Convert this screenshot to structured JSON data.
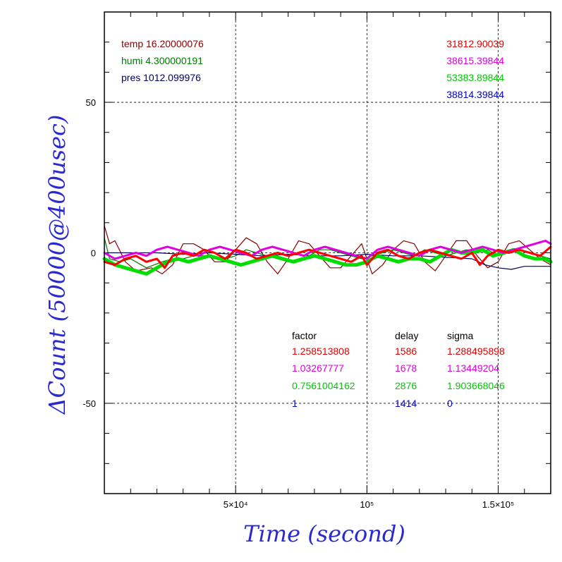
{
  "chart_data": {
    "type": "line",
    "xlabel": "Time (second)",
    "ylabel": "ΔCount (50000@400usec)",
    "xlim": [
      0,
      170000
    ],
    "ylim": [
      -80,
      80
    ],
    "x_ticks": [
      {
        "value": 50000,
        "label": "5×10⁴"
      },
      {
        "value": 100000,
        "label": "10⁵"
      },
      {
        "value": 150000,
        "label": "1.5×10⁵"
      }
    ],
    "y_ticks": [
      {
        "value": 50,
        "label": "50"
      },
      {
        "value": 0,
        "label": "0"
      },
      {
        "value": -50,
        "label": "-50"
      }
    ],
    "grid": true,
    "env": [
      {
        "label": "temp 16.20000076",
        "color": "#8b0000"
      },
      {
        "label": "humi 4.300000191",
        "color": "#007a00"
      },
      {
        "label": "pres 1012.099976",
        "color": "#00005a"
      }
    ],
    "counts": [
      {
        "value": "31812.90039",
        "color": "#e00000"
      },
      {
        "value": "38615.39844",
        "color": "#e000e0"
      },
      {
        "value": "53383.89844",
        "color": "#00c800"
      },
      {
        "value": "38814.39844",
        "color": "#0000c8"
      }
    ],
    "table": {
      "headers": [
        "factor",
        "delay",
        "sigma"
      ],
      "rows": [
        {
          "factor": "1.258513808",
          "delay": "1586",
          "sigma": "1.288495898",
          "color": "#e00000"
        },
        {
          "factor": "1.03267777",
          "delay": "1678",
          "sigma": "1.13449204",
          "color": "#e000e0"
        },
        {
          "factor": "0.7561004162",
          "delay": "2876",
          "sigma": "1.903668046",
          "color": "#00c800"
        },
        {
          "factor": "1",
          "delay": "1414",
          "sigma": "0",
          "color": "#0000c8"
        }
      ]
    },
    "series": [
      {
        "color": "#8b0000",
        "width": 1.2,
        "x": [
          0,
          2000,
          4000,
          8000,
          12000,
          18000,
          22000,
          26000,
          30000,
          34000,
          38000,
          42000,
          46000,
          50000,
          54000,
          58000,
          62000,
          66000,
          70000,
          74000,
          78000,
          82000,
          86000,
          90000,
          94000,
          98000,
          102000,
          106000,
          110000,
          114000,
          118000,
          122000,
          126000,
          130000,
          134000,
          138000,
          142000,
          146000,
          150000,
          154000,
          158000,
          162000,
          166000,
          170000
        ],
        "y": [
          9,
          3,
          4,
          -3,
          -6,
          -5,
          -7,
          -4,
          3,
          3,
          1,
          -3,
          -3,
          1,
          5,
          3,
          -3,
          -7,
          -2,
          4,
          3,
          -1,
          -5,
          -5,
          -1,
          3,
          -7,
          -4,
          1,
          4,
          3,
          -3,
          -6,
          -1,
          4,
          4,
          -1,
          -5,
          -3,
          3,
          4,
          1,
          -2,
          -4
        ]
      },
      {
        "color": "#007a00",
        "width": 1.2,
        "x": [
          0,
          2000,
          6000,
          10000,
          16000,
          22000,
          26000,
          30000,
          34000,
          38000,
          42000,
          46000,
          50000,
          54000,
          58000,
          62000,
          66000,
          70000,
          74000,
          78000,
          82000,
          86000,
          90000,
          94000,
          98000,
          102000,
          106000,
          110000,
          114000,
          118000,
          122000,
          126000,
          130000,
          134000,
          138000,
          142000,
          146000,
          150000,
          154000,
          158000,
          162000,
          166000,
          170000
        ],
        "y": [
          5,
          -2,
          -3,
          -2,
          -5,
          -3,
          -2,
          -2,
          -1,
          -1,
          -2,
          -2,
          -1,
          1,
          0,
          -1,
          -2,
          -3,
          -2,
          -1,
          1,
          1,
          0,
          -1,
          -2,
          -1,
          0,
          1,
          0,
          -1,
          1,
          0,
          -1,
          0,
          1,
          0,
          1,
          -1,
          0,
          1,
          0,
          -1,
          -2
        ]
      },
      {
        "color": "#00005a",
        "width": 1.2,
        "x": [
          0,
          10000,
          20000,
          30000,
          40000,
          50000,
          60000,
          70000,
          80000,
          90000,
          100000,
          110000,
          120000,
          130000,
          140000,
          145000,
          150000,
          155000,
          160000,
          165000,
          170000
        ],
        "y": [
          0,
          0,
          0,
          -0.5,
          0,
          -0.5,
          -1,
          -0.5,
          -1,
          -1,
          -0.5,
          -1,
          -1,
          -1.5,
          -2,
          -4,
          -5,
          -5.5,
          -4.5,
          -4.5,
          -4.5
        ]
      },
      {
        "color": "#00dd00",
        "width": 5,
        "x": [
          0,
          4000,
          8000,
          12000,
          16000,
          20000,
          24000,
          28000,
          32000,
          36000,
          40000,
          44000,
          48000,
          52000,
          56000,
          60000,
          64000,
          68000,
          72000,
          76000,
          80000,
          84000,
          88000,
          92000,
          96000,
          100000,
          104000,
          108000,
          112000,
          116000,
          120000,
          124000,
          128000,
          132000,
          136000,
          140000,
          144000,
          148000,
          152000,
          156000,
          160000,
          164000,
          168000,
          170000
        ],
        "y": [
          -2,
          -4,
          -5,
          -6,
          -7,
          -5,
          -3,
          -2,
          -3,
          -2,
          -1,
          -2,
          -3,
          -4,
          -3,
          -2,
          -1,
          -2,
          -3,
          -2,
          -1,
          -2,
          -3,
          -4,
          -4,
          -3,
          -1,
          -2,
          -3,
          -2,
          -2,
          -3,
          -1,
          1,
          0,
          0,
          1,
          -1,
          0,
          1,
          -1,
          -2,
          -2,
          -3
        ]
      },
      {
        "color": "#e000e0",
        "width": 3,
        "x": [
          0,
          4000,
          8000,
          12000,
          16000,
          20000,
          24000,
          28000,
          32000,
          36000,
          40000,
          44000,
          48000,
          52000,
          56000,
          60000,
          64000,
          68000,
          72000,
          76000,
          80000,
          84000,
          88000,
          92000,
          96000,
          100000,
          104000,
          108000,
          112000,
          116000,
          120000,
          124000,
          128000,
          132000,
          136000,
          140000,
          144000,
          148000,
          152000,
          156000,
          160000,
          164000,
          168000,
          170000
        ],
        "y": [
          0,
          -2,
          -1,
          0,
          -1,
          1,
          2,
          1,
          0,
          -1,
          1,
          2,
          1,
          0,
          -1,
          1,
          2,
          1,
          0,
          -1,
          1,
          2,
          1,
          0,
          -1,
          -2,
          1,
          2,
          1,
          0,
          -1,
          1,
          2,
          1,
          0,
          1,
          2,
          1,
          0,
          1,
          2,
          3,
          4,
          3
        ]
      },
      {
        "color": "#ff0000",
        "width": 3,
        "x": [
          0,
          4000,
          8000,
          12000,
          16000,
          20000,
          23000,
          26000,
          30000,
          34000,
          38000,
          42000,
          46000,
          50000,
          54000,
          58000,
          62000,
          66000,
          70000,
          74000,
          78000,
          82000,
          86000,
          90000,
          94000,
          98000,
          100000,
          104000,
          108000,
          112000,
          116000,
          120000,
          124000,
          128000,
          132000,
          136000,
          140000,
          143000,
          146000,
          150000,
          154000,
          158000,
          162000,
          166000,
          170000
        ],
        "y": [
          -3,
          -4,
          -2,
          -1,
          -3,
          -2,
          -5,
          -1,
          0,
          -1,
          1,
          0,
          -2,
          1,
          0,
          -2,
          -1,
          0,
          -1,
          0,
          1,
          0,
          -1,
          -2,
          -3,
          -1,
          -4,
          0,
          1,
          -1,
          -2,
          0,
          1,
          0,
          -1,
          -2,
          0,
          -4,
          -1,
          1,
          0,
          1,
          0,
          -1,
          2
        ]
      }
    ]
  }
}
